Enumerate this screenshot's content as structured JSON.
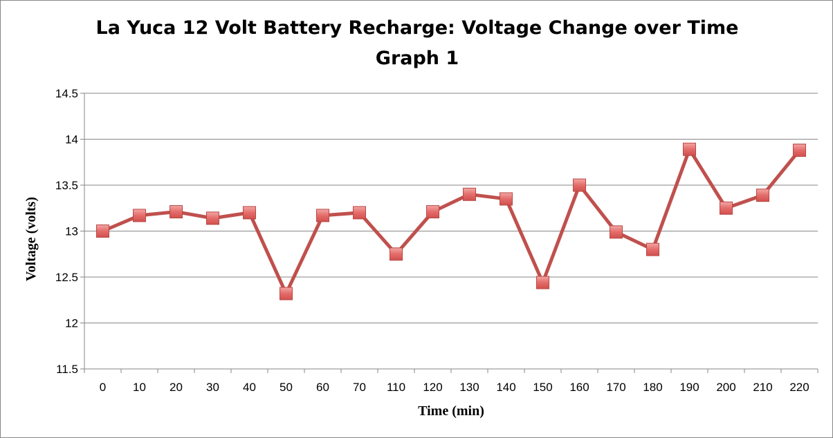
{
  "chart_data": {
    "type": "line",
    "title": "La Yuca 12 Volt Battery Recharge: Voltage Change over Time",
    "subtitle": "Graph 1",
    "xlabel": "Time (min)",
    "ylabel": "Voltage (volts)",
    "ylim": [
      11.5,
      14.5
    ],
    "yticks": [
      "11.5",
      "12",
      "12.5",
      "13",
      "13.5",
      "14",
      "14.5"
    ],
    "grid": true,
    "legend": "none",
    "categories": [
      "0",
      "10",
      "20",
      "30",
      "40",
      "50",
      "60",
      "70",
      "110",
      "120",
      "130",
      "140",
      "150",
      "160",
      "170",
      "180",
      "190",
      "200",
      "210",
      "220"
    ],
    "series": [
      {
        "values": [
          13.0,
          13.17,
          13.21,
          13.14,
          13.2,
          12.32,
          13.17,
          13.2,
          12.75,
          13.21,
          13.4,
          13.35,
          12.44,
          13.5,
          12.99,
          12.8,
          13.89,
          13.25,
          13.39,
          13.88
        ],
        "color": "#C0504D",
        "marker": "square",
        "marker_fill": "#E46C6A"
      }
    ]
  }
}
